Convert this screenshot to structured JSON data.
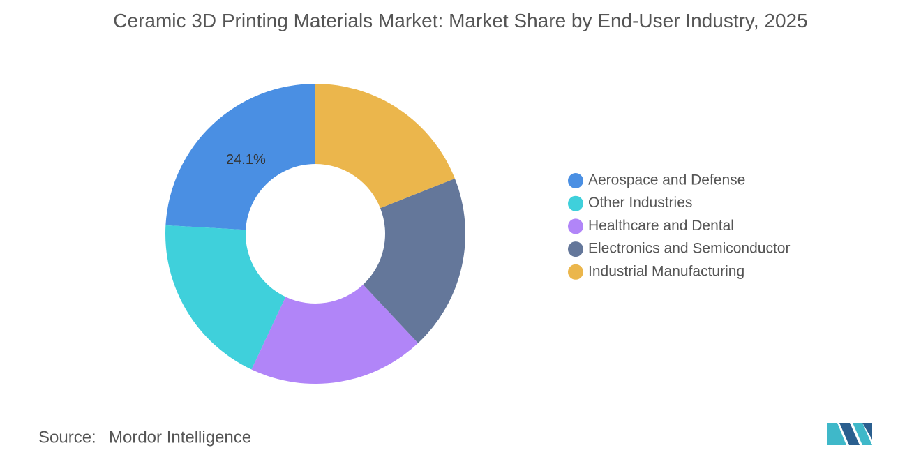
{
  "chart_data": {
    "type": "donut",
    "title": "Ceramic 3D Printing Materials Market: Market Share by End-User Industry, 2025",
    "categories": [
      "Aerospace and Defense",
      "Other Industries",
      "Healthcare and Dental",
      "Electronics and Semiconductor",
      "Industrial Manufacturing"
    ],
    "values": [
      24.1,
      18.9,
      19.0,
      19.0,
      19.0
    ],
    "value_labels": [
      "24.1%",
      null,
      null,
      null,
      null
    ],
    "colors": [
      "#4a8fe3",
      "#3fd0db",
      "#b185f8",
      "#64779a",
      "#ebb64c"
    ],
    "legend": "right",
    "source": {
      "label": "Source:",
      "text": "Mordor Intelligence"
    }
  }
}
